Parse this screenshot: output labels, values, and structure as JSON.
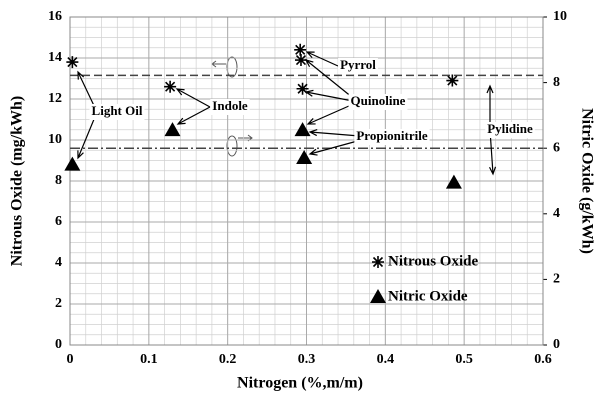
{
  "chart_data": {
    "type": "scatter",
    "x_label": "Nitrogen (%,m/m)",
    "y_label": "Nitrous Oxide (mg/kWh)",
    "y2_label": "Nitric Oxide (g/kWh)",
    "xlim": [
      0,
      0.6
    ],
    "xticks": [
      0,
      0.1,
      0.2,
      0.3,
      0.4,
      0.5,
      0.6
    ],
    "ylim": [
      0,
      16
    ],
    "yticks": [
      0,
      2,
      4,
      6,
      8,
      10,
      12,
      14,
      16
    ],
    "y2lim": [
      0,
      10
    ],
    "y2ticks": [
      0,
      2,
      4,
      6,
      8,
      10
    ],
    "grid": true,
    "minor_grid": {
      "x": 0.02,
      "y": 0.5
    },
    "legend": "lower right",
    "series": [
      {
        "name": "Nitrous Oxide",
        "color": "#000000",
        "marker": "asterisk",
        "x": [
          0.003,
          0.127,
          0.292,
          0.293,
          0.295,
          0.485
        ],
        "values": [
          13.8,
          12.6,
          14.4,
          13.9,
          12.5,
          12.9
        ]
      },
      {
        "name": "Nitric Oxide",
        "color": "#000000",
        "marker": "triangle",
        "axis": "y2",
        "x": [
          0.003,
          0.13,
          0.295,
          0.297,
          0.487
        ],
        "values": [
          5.5,
          6.55,
          6.55,
          5.7,
          4.95
        ]
      }
    ],
    "reference_lines": [
      {
        "axis": "y",
        "value": 13.15,
        "style": "dashed"
      },
      {
        "axis": "y",
        "value": 9.6,
        "style": "dashdot"
      }
    ],
    "annotations": [
      "Light Oil",
      "Indole",
      "Pyrrol",
      "Quinoline",
      "Propionitrile",
      "Pylidine"
    ]
  }
}
